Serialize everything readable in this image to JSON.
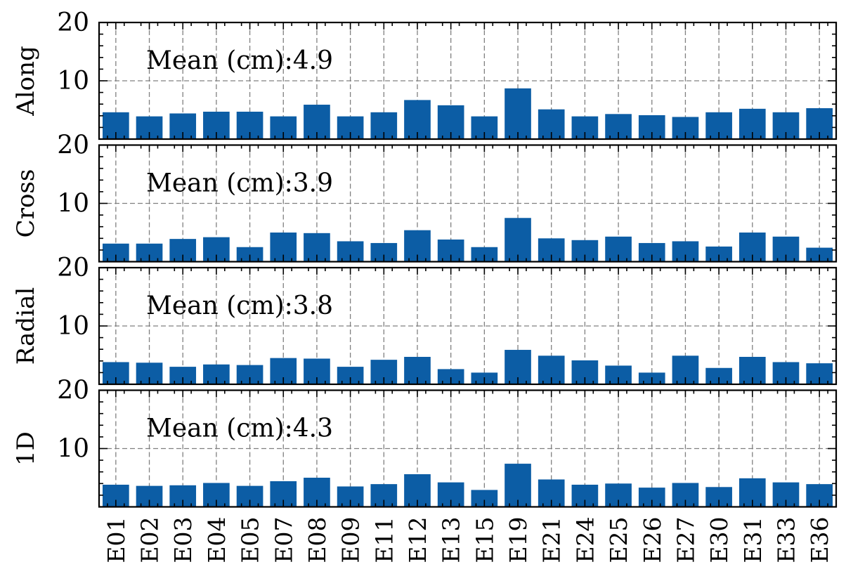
{
  "chart_data": {
    "type": "bar",
    "categories": [
      "E01",
      "E02",
      "E03",
      "E04",
      "E05",
      "E07",
      "E08",
      "E09",
      "E11",
      "E12",
      "E13",
      "E15",
      "E19",
      "E21",
      "E24",
      "E25",
      "E26",
      "E27",
      "E30",
      "E31",
      "E33",
      "E36"
    ],
    "ylim": [
      0,
      20
    ],
    "yticks": [
      "10",
      "20"
    ],
    "bar_color": "#0c5da5",
    "grid": true,
    "panels": [
      {
        "ylabel": "Along",
        "mean_label": "Mean (cm):",
        "mean_value": "4.9",
        "values": [
          4.6,
          3.9,
          4.4,
          4.7,
          4.7,
          3.9,
          5.9,
          3.9,
          4.6,
          6.7,
          5.8,
          3.9,
          8.7,
          5.1,
          3.9,
          4.3,
          4.1,
          3.8,
          4.6,
          5.2,
          4.6,
          5.3
        ]
      },
      {
        "ylabel": "Cross",
        "mean_label": "Mean (cm):",
        "mean_value": "3.9",
        "values": [
          3.1,
          3.1,
          3.9,
          4.2,
          2.5,
          5.0,
          4.9,
          3.5,
          3.2,
          5.4,
          3.8,
          2.5,
          7.5,
          4.0,
          3.7,
          4.3,
          3.2,
          3.5,
          2.6,
          5.0,
          4.3,
          2.4
        ]
      },
      {
        "ylabel": "Radial",
        "mean_label": "Mean (cm):",
        "mean_value": "3.8",
        "values": [
          3.8,
          3.7,
          3.0,
          3.4,
          3.3,
          4.5,
          4.4,
          3.0,
          4.2,
          4.7,
          2.6,
          2.0,
          5.9,
          4.9,
          4.1,
          3.2,
          2.0,
          4.9,
          2.8,
          4.7,
          3.8,
          3.6
        ]
      },
      {
        "ylabel": "1D",
        "mean_label": "Mean (cm):",
        "mean_value": "4.3",
        "values": [
          3.8,
          3.6,
          3.7,
          4.1,
          3.6,
          4.4,
          5.0,
          3.5,
          3.9,
          5.6,
          4.2,
          2.9,
          7.4,
          4.7,
          3.8,
          4.0,
          3.3,
          4.1,
          3.4,
          4.9,
          4.2,
          3.9
        ]
      }
    ]
  }
}
